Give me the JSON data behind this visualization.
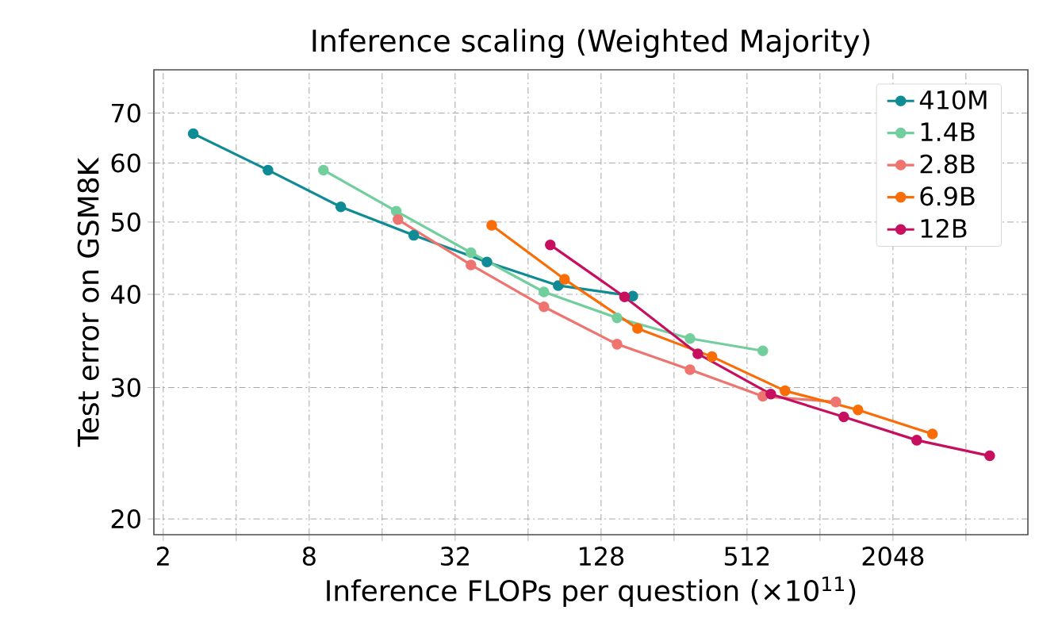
{
  "chart_data": {
    "type": "line",
    "title": "Inference scaling (Weighted Majority)",
    "xlabel": "Inference FLOPs per question (×10$^{11}$)",
    "ylabel": "Test error on GSM8K",
    "log": "xy",
    "grid": true,
    "legend": "top right",
    "marker": "circle",
    "line_style": "solid",
    "xlim": [
      1.83,
      7380
    ],
    "ylim": [
      19.05,
      80
    ],
    "xticks": [
      2,
      {
        "value": 4,
        "label": null
      },
      8,
      {
        "value": 16,
        "label": null
      },
      32,
      {
        "value": 64,
        "label": null
      },
      128,
      {
        "value": 256,
        "label": null
      },
      512,
      {
        "value": 1024,
        "label": null
      },
      2048,
      {
        "value": 4096,
        "label": null
      }
    ],
    "yticks": [
      20,
      30,
      40,
      50,
      60,
      70
    ],
    "series": [
      {
        "name": "410M",
        "color": "#0f8b96",
        "x": [
          2.66,
          5.41,
          10.8,
          21.6,
          43.3,
          85.2,
          173
        ],
        "values": [
          65.7,
          58.7,
          52.4,
          48.0,
          44.2,
          41.1,
          39.8
        ]
      },
      {
        "name": "1.4B",
        "color": "#72cf9d",
        "x": [
          9.16,
          18.3,
          37.2,
          74.4,
          149,
          298,
          595
        ],
        "values": [
          58.7,
          51.7,
          45.5,
          40.3,
          37.2,
          34.9,
          33.6
        ]
      },
      {
        "name": "2.8B",
        "color": "#ee7470",
        "x": [
          18.6,
          37.2,
          74.4,
          149,
          298,
          595,
          1190
        ],
        "values": [
          50.4,
          43.8,
          38.5,
          34.3,
          31.7,
          29.2,
          28.7
        ]
      },
      {
        "name": "6.9B",
        "color": "#f96c06",
        "x": [
          45.3,
          90.5,
          181,
          367,
          735,
          1470,
          2980
        ],
        "values": [
          49.5,
          41.9,
          36.0,
          33.0,
          29.7,
          28.0,
          26.0
        ]
      },
      {
        "name": "12B",
        "color": "#c6105f",
        "x": [
          79,
          160,
          321,
          642,
          1284,
          2567,
          5134
        ],
        "values": [
          46.6,
          39.7,
          33.3,
          29.4,
          27.4,
          25.5,
          24.3
        ]
      }
    ]
  }
}
